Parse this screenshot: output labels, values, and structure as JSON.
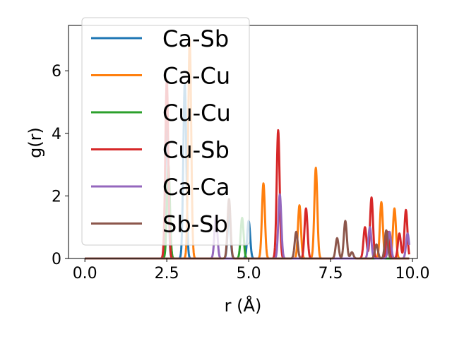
{
  "chart_data": {
    "type": "line",
    "title": "",
    "xlabel": "r (Å)",
    "ylabel": "g(r)",
    "xlim": [
      -0.5,
      10.15
    ],
    "ylim": [
      0,
      7.45
    ],
    "xticks": [
      0.0,
      2.5,
      5.0,
      7.5,
      10.0
    ],
    "xtick_labels": [
      "0.0",
      "2.5",
      "5.0",
      "7.5",
      "10.0"
    ],
    "yticks": [
      0,
      2,
      4,
      6
    ],
    "ytick_labels": [
      "0",
      "2",
      "4",
      "6"
    ],
    "grid": false,
    "legend_position": "top-left",
    "series": [
      {
        "name": "Ca-Sb",
        "color": "#1f77b4",
        "peaks": [
          [
            2.5,
            4.4
          ],
          [
            3.05,
            5.6
          ],
          [
            4.4,
            1.4
          ],
          [
            5.0,
            1.2
          ]
        ]
      },
      {
        "name": "Ca-Cu",
        "color": "#ff7f0e",
        "peaks": [
          [
            3.2,
            7.0
          ],
          [
            5.45,
            2.4
          ],
          [
            6.55,
            1.7
          ],
          [
            7.05,
            2.9
          ],
          [
            9.05,
            1.8
          ],
          [
            9.45,
            1.6
          ]
        ]
      },
      {
        "name": "Cu-Cu",
        "color": "#2ca02c",
        "peaks": [
          [
            2.55,
            3.0
          ],
          [
            4.8,
            1.3
          ]
        ]
      },
      {
        "name": "Cu-Sb",
        "color": "#d62728",
        "peaks": [
          [
            2.5,
            5.7
          ],
          [
            5.9,
            4.1
          ],
          [
            6.75,
            1.6
          ],
          [
            8.55,
            1.0
          ],
          [
            8.75,
            1.95
          ],
          [
            9.25,
            0.85
          ],
          [
            9.6,
            0.8
          ],
          [
            9.8,
            1.55
          ]
        ]
      },
      {
        "name": "Ca-Ca",
        "color": "#9467bd",
        "peaks": [
          [
            4.0,
            1.35
          ],
          [
            5.95,
            2.05
          ],
          [
            8.7,
            1.0
          ],
          [
            9.3,
            0.85
          ],
          [
            9.85,
            0.8
          ]
        ]
      },
      {
        "name": "Sb-Sb",
        "color": "#8c564b",
        "peaks": [
          [
            4.4,
            1.9
          ],
          [
            6.45,
            0.85
          ],
          [
            7.7,
            0.65
          ],
          [
            7.95,
            1.2
          ],
          [
            8.15,
            0.2
          ],
          [
            8.9,
            0.45
          ],
          [
            9.2,
            0.9
          ]
        ]
      }
    ]
  }
}
